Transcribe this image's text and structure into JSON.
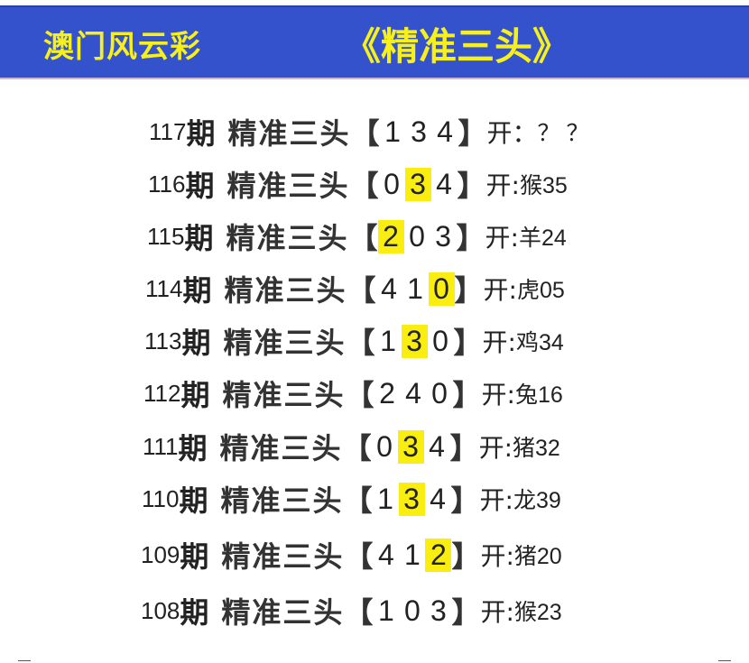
{
  "banner": {
    "site": "澳门风云彩",
    "title": "《精准三头》",
    "bg_color": "#3352cc",
    "text_color": "#f7f01a"
  },
  "highlight_color": "#f9ee10",
  "rows": [
    {
      "issue": "117",
      "qi": "期",
      "name": "精准三头",
      "digits": [
        "1",
        "3",
        "4"
      ],
      "highlight": null,
      "kai": "开：",
      "result": "？ ？"
    },
    {
      "issue": "116",
      "qi": "期",
      "name": "精准三头",
      "digits": [
        "0",
        "3",
        "4"
      ],
      "highlight": 1,
      "kai": "开:",
      "result": "猴35"
    },
    {
      "issue": "115",
      "qi": "期",
      "name": "精准三头",
      "digits": [
        "2",
        "0",
        "3"
      ],
      "highlight": 0,
      "kai": "开:",
      "result": "羊24"
    },
    {
      "issue": "114",
      "qi": "期",
      "name": "精准三头",
      "digits": [
        "4",
        "1",
        "0"
      ],
      "highlight": 2,
      "kai": "开:",
      "result": "虎05"
    },
    {
      "issue": "113",
      "qi": "期",
      "name": "精准三头",
      "digits": [
        "1",
        "3",
        "0"
      ],
      "highlight": 1,
      "kai": "开:",
      "result": "鸡34"
    },
    {
      "issue": "112",
      "qi": "期",
      "name": "精准三头",
      "digits": [
        "2",
        "4",
        "0"
      ],
      "highlight": null,
      "kai": "开:",
      "result": "兔16"
    },
    {
      "issue": "111",
      "qi": "期",
      "name": "精准三头",
      "digits": [
        "0",
        "3",
        "4"
      ],
      "highlight": 1,
      "kai": "开:",
      "result": "猪32"
    },
    {
      "issue": "110",
      "qi": "期",
      "name": "精准三头",
      "digits": [
        "1",
        "3",
        "4"
      ],
      "highlight": 1,
      "kai": "开:",
      "result": "龙39"
    },
    {
      "issue": "109",
      "qi": "期",
      "name": "精准三头",
      "digits": [
        "4",
        "1",
        "2"
      ],
      "highlight": 2,
      "kai": "开:",
      "result": "猪20"
    },
    {
      "issue": "108",
      "qi": "期",
      "name": "精准三头",
      "digits": [
        "1",
        "0",
        "3"
      ],
      "highlight": null,
      "kai": "开:",
      "result": "猴23"
    }
  ]
}
